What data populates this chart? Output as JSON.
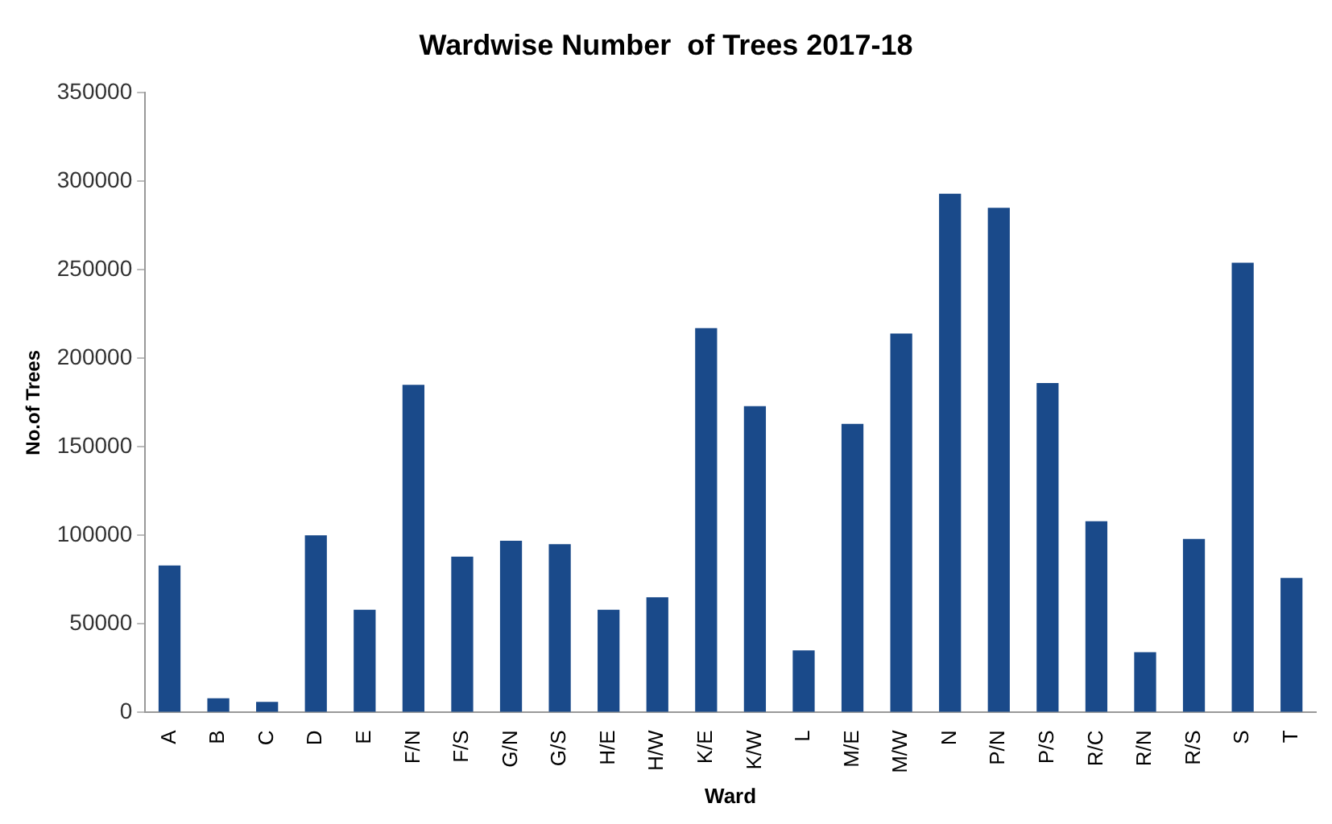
{
  "chart_data": {
    "type": "bar",
    "title": "Wardwise Number  of Trees 2017-18",
    "xlabel": "Ward",
    "ylabel": "No.of Trees",
    "categories": [
      "A",
      "B",
      "C",
      "D",
      "E",
      "F/N",
      "F/S",
      "G/N",
      "G/S",
      "H/E",
      "H/W",
      "K/E",
      "K/W",
      "L",
      "M/E",
      "M/W",
      "N",
      "P/N",
      "P/S",
      "R/C",
      "R/N",
      "R/S",
      "S",
      "T"
    ],
    "values": [
      83000,
      8000,
      6000,
      100000,
      58000,
      185000,
      88000,
      97000,
      95000,
      58000,
      65000,
      217000,
      173000,
      35000,
      163000,
      214000,
      293000,
      285000,
      186000,
      108000,
      34000,
      98000,
      254000,
      76000
    ],
    "color": "#1a4a8a",
    "ylim": [
      0,
      350000
    ],
    "yticks": [
      0,
      50000,
      100000,
      150000,
      200000,
      250000,
      300000,
      350000
    ],
    "grid": false,
    "legend": false
  }
}
